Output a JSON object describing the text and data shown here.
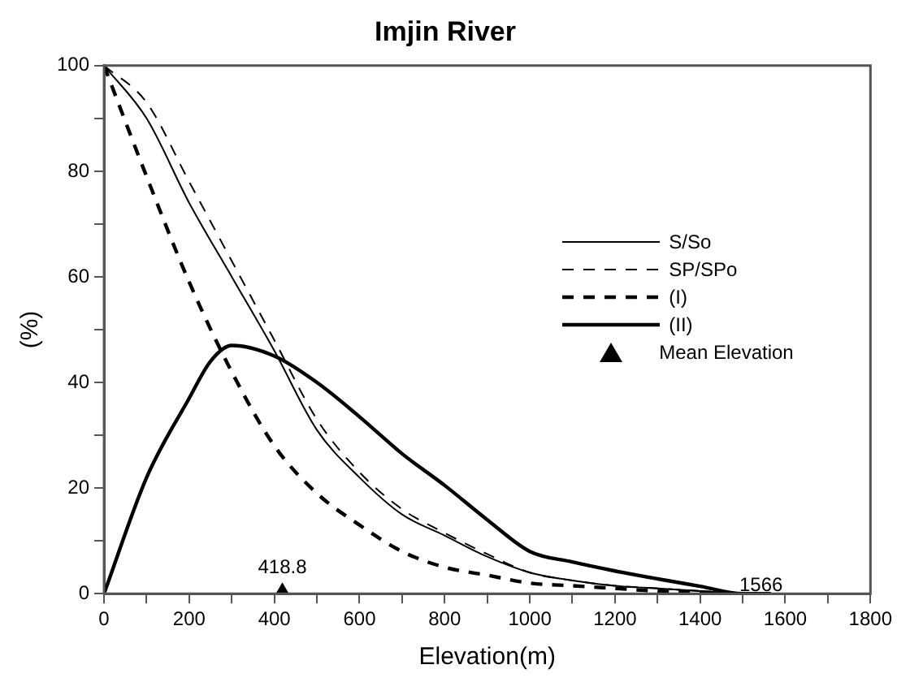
{
  "chart_data": {
    "type": "line",
    "title": "Imjin River",
    "xlabel": "Elevation(m)",
    "ylabel": "(%)",
    "xlim": [
      0,
      1800
    ],
    "ylim": [
      0,
      100
    ],
    "xticks": [
      0,
      {
        "value": 100,
        "label": null
      },
      200,
      {
        "value": 300,
        "label": null
      },
      400,
      {
        "value": 500,
        "label": null
      },
      600,
      {
        "value": 700,
        "label": null
      },
      800,
      {
        "value": 900,
        "label": null
      },
      1000,
      {
        "value": 1100,
        "label": null
      },
      1200,
      {
        "value": 1300,
        "label": null
      },
      1400,
      {
        "value": 1500,
        "label": null
      },
      1600,
      {
        "value": 1700,
        "label": null
      },
      1800
    ],
    "yticks": [
      0,
      {
        "value": 10,
        "label": null
      },
      20,
      {
        "value": 30,
        "label": null
      },
      40,
      {
        "value": 50,
        "label": null
      },
      60,
      {
        "value": 70,
        "label": null
      },
      80,
      {
        "value": 90,
        "label": null
      },
      100
    ],
    "grid": false,
    "legend": "right",
    "series": [
      {
        "name": "S/So",
        "type": "line",
        "line_style": "solid",
        "color": "#000000",
        "x": [
          0,
          100,
          200,
          300,
          400,
          500,
          600,
          700,
          800,
          900,
          1000,
          1100,
          1200,
          1300,
          1400,
          1500,
          1566
        ],
        "values": [
          100,
          90,
          74,
          60,
          46,
          31,
          22,
          15,
          11,
          7,
          4,
          2.5,
          1.5,
          1,
          0.5,
          0,
          0
        ]
      },
      {
        "name": "SP/SPo",
        "type": "line",
        "line_style": "dashed",
        "color": "#000000",
        "x": [
          0,
          100,
          200,
          300,
          400,
          500,
          600,
          700,
          800,
          900,
          1000,
          1100,
          1200,
          1300,
          1400,
          1500,
          1566
        ],
        "values": [
          100,
          93,
          78,
          63,
          48,
          33,
          23,
          16,
          11.5,
          7.5,
          4,
          2.5,
          1.5,
          1,
          0.5,
          0,
          0
        ]
      },
      {
        "name": "(I)",
        "type": "line",
        "line_style": "dashed",
        "color": "#000000",
        "x": [
          0,
          100,
          200,
          300,
          400,
          500,
          600,
          700,
          800,
          900,
          1000,
          1100,
          1200,
          1300,
          1400,
          1500,
          1566
        ],
        "values": [
          100,
          79,
          59,
          42,
          28,
          19,
          13,
          8,
          5,
          3.5,
          2,
          1.5,
          1,
          0.5,
          0.3,
          0,
          0
        ]
      },
      {
        "name": "(II)",
        "type": "line",
        "line_style": "solid",
        "color": "#000000",
        "x": [
          0,
          100,
          200,
          250,
          300,
          400,
          500,
          600,
          700,
          800,
          900,
          1000,
          1100,
          1200,
          1300,
          1400,
          1500,
          1566
        ],
        "values": [
          0,
          22,
          37,
          44,
          47,
          45,
          40,
          33.5,
          26.5,
          20.5,
          14,
          8,
          6,
          4.3,
          2.8,
          1.4,
          0,
          0
        ]
      },
      {
        "name": "Mean Elevation",
        "type": "scatter",
        "marker": "triangle",
        "color": "#000000",
        "x": [
          418.8
        ],
        "values": [
          0
        ]
      }
    ],
    "annotations": [
      {
        "text": "418.8",
        "x": 418.8,
        "y": 0
      },
      {
        "text": "1566",
        "x": 1566,
        "y": 0
      }
    ]
  }
}
